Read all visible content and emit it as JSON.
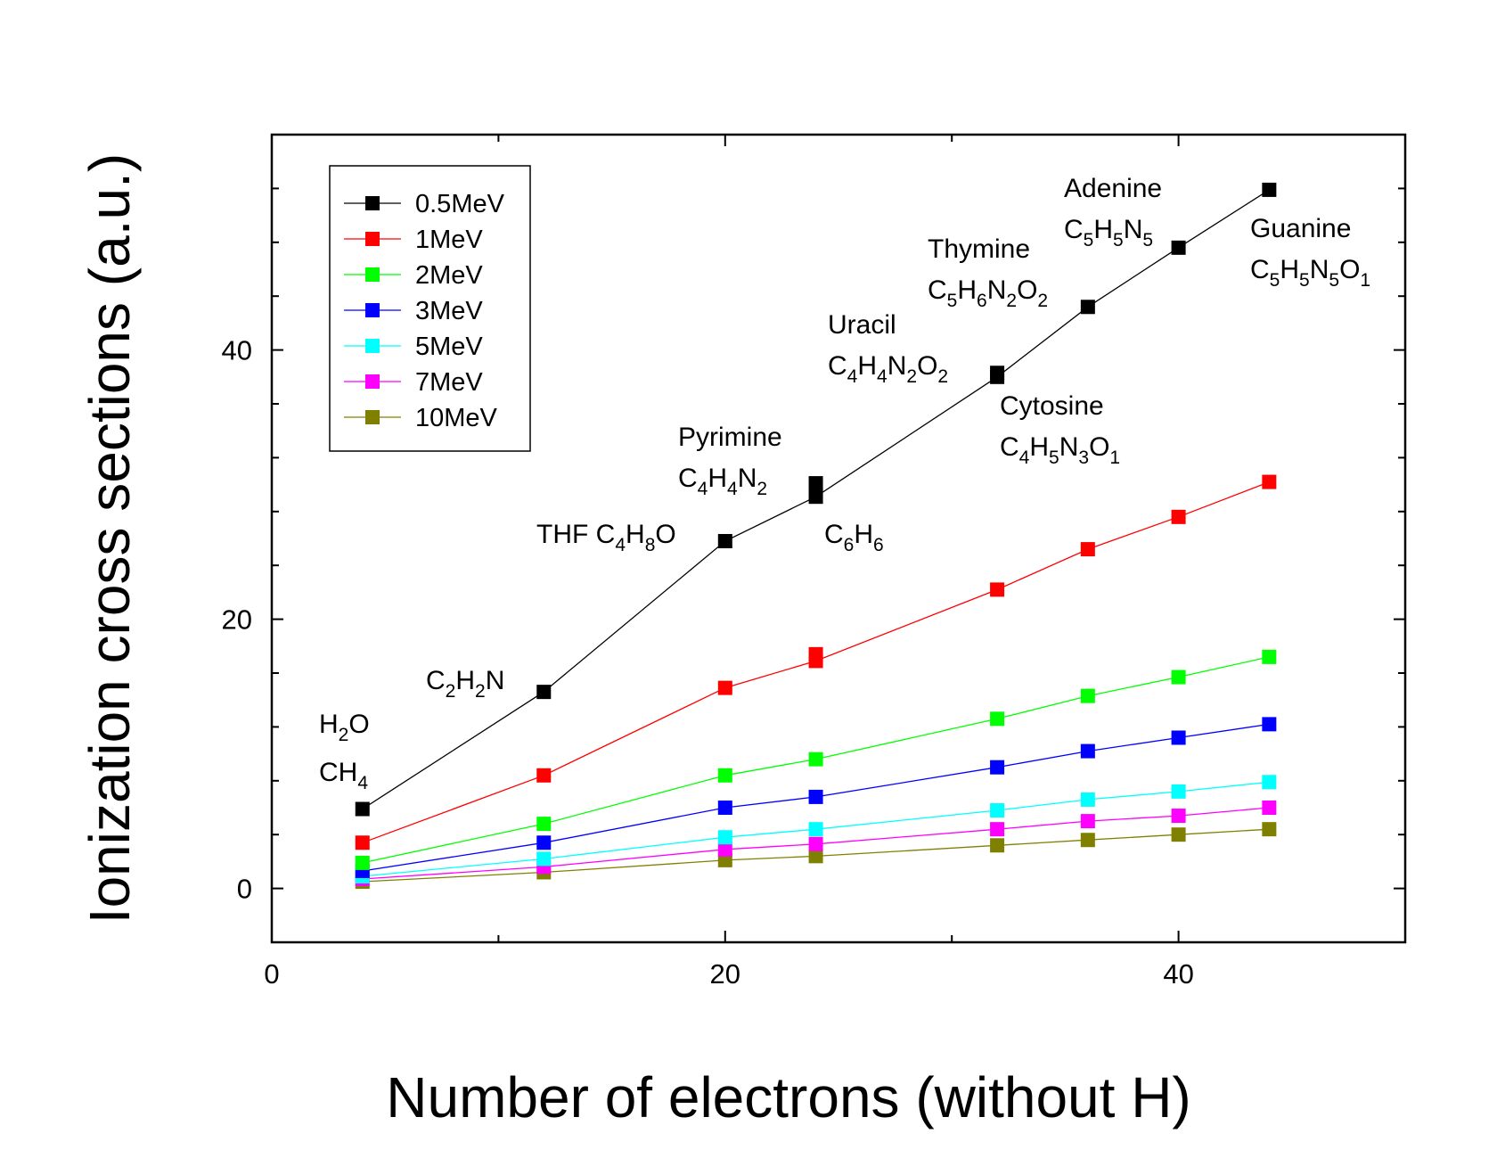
{
  "chart_data": {
    "type": "line",
    "xlabel": "Number of electrons (without H)",
    "ylabel": "Ionization cross sections (a.u.)",
    "xlim": [
      0,
      50
    ],
    "ylim": [
      -4,
      56
    ],
    "x_ticks": [
      0,
      20,
      40
    ],
    "x_tick_labels": [
      "0",
      "20",
      "40"
    ],
    "y_ticks": [
      0,
      20,
      40
    ],
    "y_tick_labels": [
      "0",
      "20",
      "40"
    ],
    "x_minor_ticks": [
      10,
      30,
      50
    ],
    "y_minor_ticks": [
      4,
      8,
      12,
      16,
      24,
      28,
      32,
      36,
      44,
      48,
      52
    ],
    "grid": false,
    "legend_position": "top-left",
    "x": [
      4,
      12,
      20,
      24,
      32,
      36,
      40,
      44
    ],
    "series": [
      {
        "name": "0.5MeV",
        "color": "#000000",
        "values": [
          5.9,
          14.6,
          25.8,
          29.1,
          38.0,
          43.2,
          47.6,
          51.9
        ],
        "extra_markers": [
          {
            "x": 24,
            "y": 30.1
          },
          {
            "x": 32,
            "y": 38.3
          }
        ]
      },
      {
        "name": "1MeV",
        "color": "#ff0000",
        "values": [
          3.4,
          8.4,
          14.9,
          16.9,
          22.2,
          25.2,
          27.6,
          30.2
        ],
        "extra_markers": [
          {
            "x": 24,
            "y": 17.4
          }
        ]
      },
      {
        "name": "2MeV",
        "color": "#00ff00",
        "values": [
          1.9,
          4.8,
          8.4,
          9.6,
          12.6,
          14.3,
          15.7,
          17.2
        ],
        "extra_markers": []
      },
      {
        "name": "3MeV",
        "color": "#0000ff",
        "values": [
          1.3,
          3.4,
          6.0,
          6.8,
          9.0,
          10.2,
          11.2,
          12.2
        ],
        "extra_markers": []
      },
      {
        "name": "5MeV",
        "color": "#00ffff",
        "values": [
          0.9,
          2.2,
          3.8,
          4.4,
          5.8,
          6.6,
          7.2,
          7.9
        ],
        "extra_markers": []
      },
      {
        "name": "7MeV",
        "color": "#ff00ff",
        "values": [
          0.7,
          1.6,
          2.9,
          3.3,
          4.4,
          5.0,
          5.4,
          6.0
        ],
        "extra_markers": []
      },
      {
        "name": "10MeV",
        "color": "#808000",
        "values": [
          0.5,
          1.2,
          2.1,
          2.4,
          3.2,
          3.6,
          4.0,
          4.4
        ],
        "extra_markers": []
      }
    ],
    "annotations": [
      {
        "parts": [
          [
            "H",
            ""
          ],
          [
            "2",
            "sub"
          ],
          [
            "O",
            ""
          ]
        ]
      },
      {
        "parts": [
          [
            "CH",
            ""
          ],
          [
            "4",
            "sub"
          ]
        ]
      },
      {
        "parts": [
          [
            "C",
            ""
          ],
          [
            "2",
            "sub"
          ],
          [
            "H",
            ""
          ],
          [
            "2",
            "sub"
          ],
          [
            "N",
            ""
          ]
        ]
      },
      {
        "parts": [
          [
            "THF C",
            ""
          ],
          [
            "4",
            "sub"
          ],
          [
            "H",
            ""
          ],
          [
            "8",
            "sub"
          ],
          [
            "O",
            ""
          ]
        ]
      },
      {
        "parts": [
          [
            "Pyrimine",
            ""
          ]
        ]
      },
      {
        "parts": [
          [
            "C",
            ""
          ],
          [
            "4",
            "sub"
          ],
          [
            "H",
            ""
          ],
          [
            "4",
            "sub"
          ],
          [
            "N",
            ""
          ],
          [
            "2",
            "sub"
          ]
        ]
      },
      {
        "parts": [
          [
            "C",
            ""
          ],
          [
            "6",
            "sub"
          ],
          [
            "H",
            ""
          ],
          [
            "6",
            "sub"
          ]
        ]
      },
      {
        "parts": [
          [
            "Uracil",
            ""
          ]
        ]
      },
      {
        "parts": [
          [
            "C",
            ""
          ],
          [
            "4",
            "sub"
          ],
          [
            "H",
            ""
          ],
          [
            "4",
            "sub"
          ],
          [
            "N",
            ""
          ],
          [
            "2",
            "sub"
          ],
          [
            "O",
            ""
          ],
          [
            "2",
            "sub"
          ]
        ]
      },
      {
        "parts": [
          [
            "Cytosine",
            ""
          ]
        ]
      },
      {
        "parts": [
          [
            "C",
            ""
          ],
          [
            "4",
            "sub"
          ],
          [
            "H",
            ""
          ],
          [
            "5",
            "sub"
          ],
          [
            "N",
            ""
          ],
          [
            "3",
            "sub"
          ],
          [
            "O",
            ""
          ],
          [
            "1",
            "sub"
          ]
        ]
      },
      {
        "parts": [
          [
            "Thymine",
            ""
          ]
        ]
      },
      {
        "parts": [
          [
            "C",
            ""
          ],
          [
            "5",
            "sub"
          ],
          [
            "H",
            ""
          ],
          [
            "6",
            "sub"
          ],
          [
            "N",
            ""
          ],
          [
            "2",
            "sub"
          ],
          [
            "O",
            ""
          ],
          [
            "2",
            "sub"
          ]
        ]
      },
      {
        "parts": [
          [
            "Adenine",
            ""
          ]
        ]
      },
      {
        "parts": [
          [
            "C",
            ""
          ],
          [
            "5",
            "sub"
          ],
          [
            "H",
            ""
          ],
          [
            "5",
            "sub"
          ],
          [
            "N",
            ""
          ],
          [
            "5",
            "sub"
          ]
        ]
      },
      {
        "parts": [
          [
            "Guanine",
            ""
          ]
        ]
      },
      {
        "parts": [
          [
            "C",
            ""
          ],
          [
            "5",
            "sub"
          ],
          [
            "H",
            ""
          ],
          [
            "5",
            "sub"
          ],
          [
            "N",
            ""
          ],
          [
            "5",
            "sub"
          ],
          [
            "O",
            ""
          ],
          [
            "1",
            "sub"
          ]
        ]
      }
    ]
  }
}
